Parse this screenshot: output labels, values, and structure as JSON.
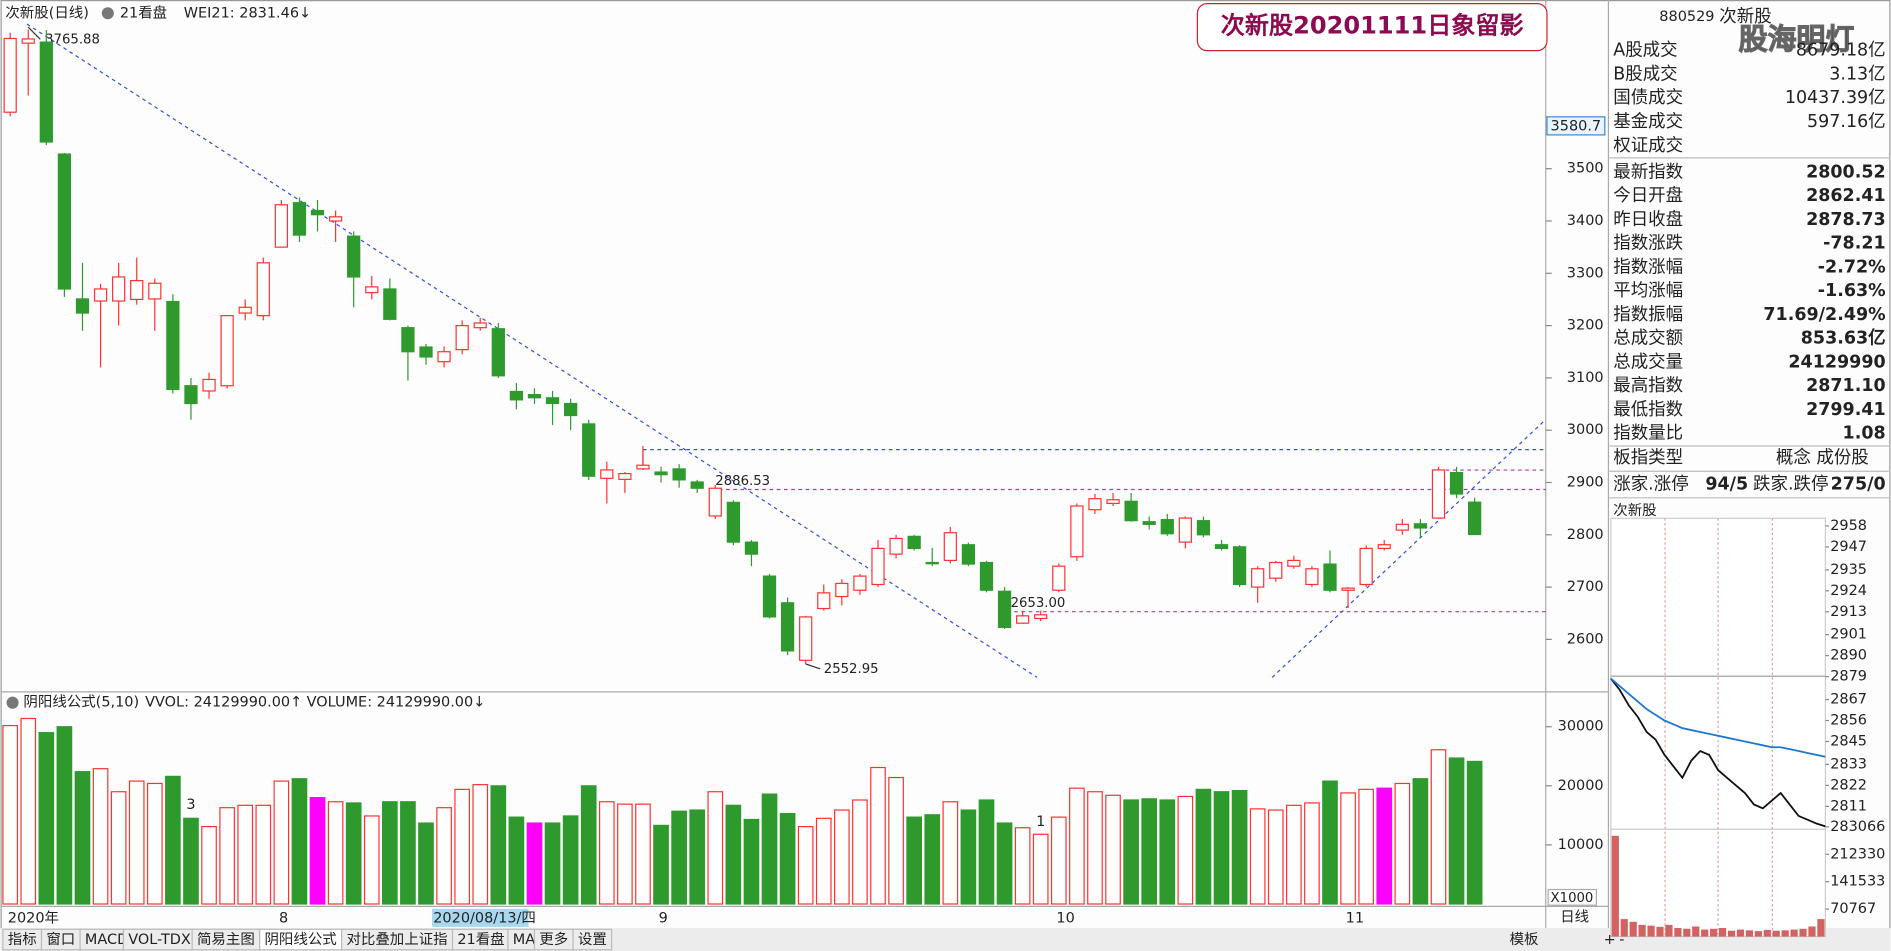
{
  "chart_data": [
    {
      "type": "candlestick",
      "title": "次新股(日线)",
      "panel": "21看盘",
      "indicator": "WEI21: 2831.46↓",
      "title_box": "次新股20201111日象留影",
      "categories": [
        "2020年",
        null,
        null,
        null,
        null,
        null,
        null,
        null,
        null,
        null,
        null,
        null,
        null,
        null,
        null,
        "8",
        null,
        null,
        null,
        null,
        null,
        null,
        null,
        "2020/08/13/四",
        null,
        null,
        null,
        null,
        null,
        null,
        null,
        null,
        null,
        null,
        null,
        null,
        "9",
        null,
        null,
        null,
        null,
        null,
        null,
        null,
        null,
        null,
        null,
        null,
        null,
        null,
        null,
        null,
        null,
        null,
        null,
        null,
        null,
        null,
        "10",
        null,
        null,
        null,
        null,
        null,
        null,
        null,
        null,
        null,
        null,
        null,
        null,
        null,
        null,
        null,
        "11",
        null,
        null,
        null,
        null,
        null,
        null,
        null
      ],
      "selected_index": 23,
      "open": [
        3608,
        3740,
        3742,
        3528,
        3251,
        3247,
        3247,
        3250,
        3251,
        3246,
        3085,
        3075,
        3085,
        3224,
        3219,
        3350,
        3435,
        3420,
        3400,
        3371,
        3263,
        3270,
        3196,
        3159,
        3131,
        3154,
        3196,
        3194,
        3074,
        3068,
        3062,
        3051,
        3012,
        2908,
        2906,
        2926,
        2920,
        2926,
        2901,
        2836,
        2862,
        2786,
        2721,
        2670,
        2560,
        2659,
        2682,
        2694,
        2705,
        2763,
        2797,
        2747,
        2751,
        2781,
        2747,
        2692,
        2631,
        2640,
        2694,
        2758,
        2848,
        2860,
        2864,
        2825,
        2829,
        2786,
        2827,
        2781,
        2777,
        2700,
        2717,
        2740,
        2705,
        2744,
        2694,
        2705,
        2774,
        2809,
        2821,
        2832,
        2919,
        2862.41
      ],
      "high": [
        3760,
        3765.88,
        3765,
        3530,
        3320,
        3280,
        3320,
        3330,
        3290,
        3260,
        3100,
        3110,
        3220,
        3250,
        3330,
        3440,
        3445,
        3440,
        3420,
        3380,
        3295,
        3290,
        3200,
        3165,
        3160,
        3210,
        3215,
        3205,
        3090,
        3080,
        3075,
        3060,
        3020,
        2940,
        2920,
        2970,
        2930,
        2935,
        2905,
        2895,
        2866,
        2790,
        2725,
        2680,
        2645,
        2705,
        2715,
        2725,
        2790,
        2800,
        2800,
        2775,
        2815,
        2785,
        2750,
        2700,
        2655,
        2655,
        2745,
        2860,
        2878,
        2880,
        2880,
        2835,
        2840,
        2835,
        2835,
        2790,
        2780,
        2740,
        2750,
        2760,
        2740,
        2770,
        2700,
        2780,
        2790,
        2830,
        2830,
        2930,
        2930,
        2871.1
      ],
      "low": [
        3600,
        3640,
        3545,
        3255,
        3190,
        3120,
        3200,
        3240,
        3190,
        3070,
        3020,
        3060,
        3080,
        3210,
        3210,
        3350,
        3360,
        3380,
        3360,
        3235,
        3250,
        3210,
        3095,
        3125,
        3120,
        3145,
        3190,
        3100,
        3040,
        3050,
        3010,
        3000,
        2905,
        2860,
        2880,
        2926,
        2900,
        2890,
        2880,
        2830,
        2780,
        2740,
        2640,
        2570,
        2552.95,
        2655,
        2665,
        2685,
        2700,
        2755,
        2770,
        2740,
        2745,
        2740,
        2690,
        2620,
        2630,
        2635,
        2690,
        2750,
        2840,
        2855,
        2825,
        2810,
        2798,
        2774,
        2795,
        2770,
        2700,
        2670,
        2710,
        2735,
        2700,
        2690,
        2660,
        2700,
        2770,
        2800,
        2795,
        2830,
        2870,
        2799.41
      ],
      "close": [
        3749,
        3748,
        3551,
        3270,
        3224,
        3270,
        3293,
        3286,
        3281,
        3078,
        3051,
        3097,
        3219,
        3235,
        3320,
        3431,
        3373,
        3412,
        3408,
        3293,
        3274,
        3212,
        3150,
        3140,
        3150,
        3200,
        3205,
        3104,
        3058,
        3062,
        3051,
        3028,
        2912,
        2924,
        2917,
        2933,
        2915,
        2905,
        2889,
        2889,
        2786,
        2763,
        2643,
        2578,
        2643,
        2689,
        2707,
        2721,
        2774,
        2793,
        2774,
        2745,
        2804,
        2744,
        2694,
        2623,
        2645,
        2647,
        2740,
        2855,
        2869,
        2867,
        2827,
        2820,
        2802,
        2832,
        2800,
        2774,
        2705,
        2735,
        2747,
        2751,
        2735,
        2694,
        2698,
        2774,
        2781,
        2820,
        2813,
        2924,
        2878,
        2800.52
      ],
      "up_color": "#ff3232",
      "down_color": "#2e9a2e",
      "ylim": [
        2502,
        3811
      ],
      "yticks": [
        2600,
        2700,
        2800,
        2900,
        3000,
        3100,
        3200,
        3300,
        3400,
        3500
      ],
      "axis_marker": 3580.7,
      "high_label": 3765.88,
      "low_label": 2552.95,
      "levels": [
        2886.53,
        {
          "value": 2653,
          "label": "2653.00"
        }
      ],
      "level_color": "#a040a0"
    },
    {
      "type": "bar",
      "title": "阴阳线公式(5,10)",
      "indicators": [
        "VVOL: 24129990.00↑",
        "VOLUME: 24129990.00↓"
      ],
      "values": [
        30200,
        31400,
        29000,
        30000,
        22400,
        22900,
        19000,
        20800,
        20400,
        21600,
        14500,
        13100,
        16300,
        16700,
        16700,
        20800,
        21200,
        18000,
        17300,
        17100,
        14900,
        17300,
        17300,
        13700,
        16300,
        19400,
        20200,
        20000,
        14700,
        13700,
        13700,
        14900,
        20000,
        17300,
        16900,
        16900,
        13300,
        15700,
        15900,
        19000,
        16700,
        14300,
        18600,
        15300,
        13100,
        14500,
        15900,
        17600,
        23100,
        21400,
        14700,
        15100,
        17300,
        15900,
        17600,
        13700,
        12900,
        11800,
        14700,
        19600,
        19000,
        18400,
        17600,
        17800,
        17600,
        18200,
        19400,
        19000,
        19200,
        16100,
        15900,
        16700,
        17100,
        20800,
        18800,
        19400,
        19600,
        20400,
        21200,
        26100,
        24700,
        24130
      ],
      "highlight": [
        17,
        29,
        76
      ],
      "highlight_color": "#ff00ff",
      "notes": [
        {
          "bar": 10,
          "text": "3"
        },
        {
          "bar": 57,
          "text": "1"
        }
      ],
      "ylim": [
        0,
        35700
      ],
      "yticks": [
        10000,
        20000,
        30000
      ],
      "scale_label": "X1000"
    },
    {
      "type": "line",
      "title": "次新股",
      "x": [
        0,
        10,
        20,
        30,
        40,
        50,
        60,
        70,
        80,
        90,
        100,
        110,
        120,
        130,
        140,
        150,
        160,
        170,
        180,
        190,
        200,
        210,
        220,
        230,
        240
      ],
      "xlim": [
        0,
        240
      ],
      "series": [
        {
          "name": "price",
          "color": "#111111",
          "values": [
            2878,
            2872,
            2864,
            2858,
            2850,
            2846,
            2838,
            2832,
            2826,
            2835,
            2840,
            2838,
            2830,
            2826,
            2822,
            2818,
            2812,
            2810,
            2814,
            2818,
            2812,
            2806,
            2804,
            2802,
            2800.52
          ]
        },
        {
          "name": "average",
          "color": "#1e78d2",
          "values": [
            2878,
            2874,
            2870,
            2866,
            2862,
            2859,
            2856,
            2854,
            2852,
            2851,
            2850,
            2849,
            2848,
            2847,
            2846,
            2845,
            2844,
            2843,
            2842,
            2842,
            2841,
            2840,
            2839,
            2838,
            2837
          ]
        }
      ],
      "ylim": [
        2799,
        2962
      ],
      "yticks": [
        2958,
        2947,
        2935,
        2924,
        2913,
        2901,
        2890,
        2879,
        2867,
        2856,
        2845,
        2833,
        2822,
        2811
      ]
    },
    {
      "type": "bar",
      "x": [
        5,
        15,
        25,
        35,
        45,
        55,
        65,
        75,
        85,
        95,
        105,
        115,
        125,
        135,
        145,
        155,
        165,
        175,
        185,
        195,
        205,
        215,
        225,
        235
      ],
      "values": [
        260000,
        45000,
        38000,
        30000,
        28000,
        25000,
        30000,
        22000,
        20000,
        26000,
        18000,
        20000,
        22000,
        15000,
        18000,
        16000,
        14000,
        17000,
        15000,
        16000,
        18000,
        20000,
        26000,
        45000
      ],
      "color": "#c83c3c",
      "ylim": [
        0,
        283066
      ],
      "yticks": [
        70767,
        141533,
        212330,
        283066
      ]
    }
  ],
  "info_panel": {
    "code": "880529",
    "name": "次新股",
    "watermark": "股海明灯",
    "rows": [
      {
        "label": "A股成交",
        "value": "8679.18亿",
        "color": "#222"
      },
      {
        "label": "B股成交",
        "value": "3.13亿",
        "color": "#222"
      },
      {
        "label": "国债成交",
        "value": "10437.39亿",
        "color": "#222"
      },
      {
        "label": "基金成交",
        "value": "597.16亿",
        "color": "#222"
      },
      {
        "label": "权证成交"
      },
      {
        "label": "最新指数",
        "value": "2800.52",
        "color": "#1a9a1a"
      },
      {
        "label": "今日开盘",
        "value": "2862.41",
        "color": "#1a9a1a"
      },
      {
        "label": "昨日收盘",
        "value": "2878.73",
        "color": "#222"
      },
      {
        "label": "指数涨跌",
        "value": "-78.21",
        "color": "#1a9a1a"
      },
      {
        "label": "指数涨幅",
        "value": "-2.72%",
        "color": "#1a9a1a"
      },
      {
        "label": "平均涨幅",
        "value": "-1.63%",
        "color": "#1a9a1a"
      },
      {
        "label": "指数振幅",
        "value": "71.69/2.49%",
        "color": "#222"
      },
      {
        "label": "总成交额",
        "value": "853.63亿",
        "color": "#222"
      },
      {
        "label": "总成交量",
        "value": "24129990",
        "color": "#222"
      },
      {
        "label": "最高指数",
        "value": "2871.10",
        "color": "#1a9a1a"
      },
      {
        "label": "最低指数",
        "value": "2799.41",
        "color": "#1a9a1a"
      },
      {
        "label": "指数量比",
        "value": "1.08",
        "color": "#e02020"
      }
    ],
    "type_row": {
      "label": "板指类型",
      "value": "概念 成份股"
    },
    "breadth": [
      {
        "label": "涨家.涨停",
        "value": "94/5",
        "color": "#e02020"
      },
      {
        "label": "跌家.跌停",
        "value": "275/0",
        "color": "#1a9a1a"
      }
    ]
  },
  "tabs": [
    "指标",
    "窗口",
    "MACD",
    "VOL-TDX",
    "简易主图",
    "阴阳线公式",
    "对比叠加上证指",
    "21看盘",
    "MA",
    "更多",
    "设置"
  ],
  "active_tab": 5,
  "right_tabs": [
    "模板",
    "日线",
    "+",
    "-"
  ]
}
